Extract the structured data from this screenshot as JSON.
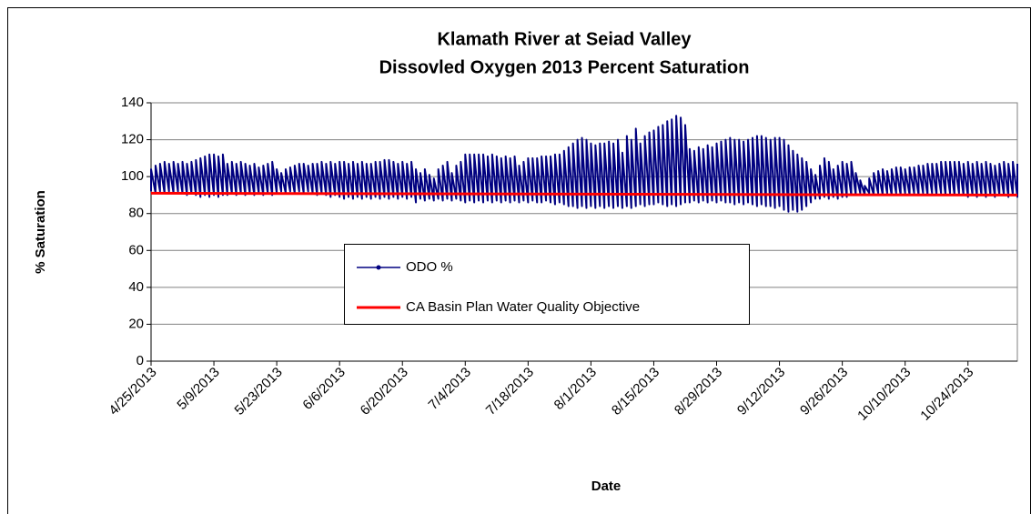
{
  "chart_data": {
    "type": "line",
    "title": "Klamath River at Seiad Valley",
    "subtitle": "Dissovled Oxygen 2013 Percent Saturation",
    "x_label": "Date",
    "y_label": "% Saturation",
    "ylim": [
      0,
      140
    ],
    "yticks": [
      0,
      20,
      40,
      60,
      80,
      100,
      120,
      140
    ],
    "grid": true,
    "xlim": [
      "4/25/2013",
      "11/4/2013"
    ],
    "xticks": [
      "4/25/2013",
      "5/9/2013",
      "5/23/2013",
      "6/6/2013",
      "6/20/2013",
      "7/4/2013",
      "7/18/2013",
      "8/1/2013",
      "8/15/2013",
      "8/29/2013",
      "9/12/2013",
      "9/26/2013",
      "10/10/2013",
      "10/24/2013"
    ],
    "legend": "center-left",
    "x": [
      "4/25/2013",
      "4/25/2013",
      "4/26/2013",
      "4/26/2013",
      "4/27/2013",
      "4/27/2013",
      "4/28/2013",
      "4/28/2013",
      "4/29/2013",
      "4/29/2013",
      "4/30/2013",
      "4/30/2013",
      "5/1/2013",
      "5/1/2013",
      "5/2/2013",
      "5/2/2013",
      "5/3/2013",
      "5/3/2013",
      "5/4/2013",
      "5/4/2013",
      "5/5/2013",
      "5/5/2013",
      "5/6/2013",
      "5/6/2013",
      "5/7/2013",
      "5/7/2013",
      "5/8/2013",
      "5/8/2013",
      "5/9/2013",
      "5/9/2013",
      "5/10/2013",
      "5/10/2013",
      "5/11/2013",
      "5/11/2013",
      "5/12/2013",
      "5/12/2013",
      "5/13/2013",
      "5/13/2013",
      "5/14/2013",
      "5/14/2013",
      "5/15/2013",
      "5/15/2013",
      "5/16/2013",
      "5/16/2013",
      "5/17/2013",
      "5/17/2013",
      "5/18/2013",
      "5/18/2013",
      "5/19/2013",
      "5/19/2013",
      "5/20/2013",
      "5/20/2013",
      "5/21/2013",
      "5/21/2013",
      "5/22/2013",
      "5/22/2013",
      "5/23/2013",
      "5/23/2013",
      "5/24/2013",
      "5/24/2013",
      "5/25/2013",
      "5/25/2013",
      "5/26/2013",
      "5/26/2013",
      "5/27/2013",
      "5/27/2013",
      "5/28/2013",
      "5/28/2013",
      "5/29/2013",
      "5/29/2013",
      "5/30/2013",
      "5/30/2013",
      "5/31/2013",
      "5/31/2013",
      "6/1/2013",
      "6/1/2013",
      "6/2/2013",
      "6/2/2013",
      "6/3/2013",
      "6/3/2013",
      "6/4/2013",
      "6/4/2013",
      "6/5/2013",
      "6/5/2013",
      "6/6/2013",
      "6/6/2013",
      "6/7/2013",
      "6/7/2013",
      "6/8/2013",
      "6/8/2013",
      "6/9/2013",
      "6/9/2013",
      "6/10/2013",
      "6/10/2013",
      "6/11/2013",
      "6/11/2013",
      "6/12/2013",
      "6/12/2013",
      "6/13/2013",
      "6/13/2013",
      "6/14/2013",
      "6/14/2013",
      "6/15/2013",
      "6/15/2013",
      "6/16/2013",
      "6/16/2013",
      "6/17/2013",
      "6/17/2013",
      "6/18/2013",
      "6/18/2013",
      "6/19/2013",
      "6/19/2013",
      "6/20/2013",
      "6/20/2013",
      "6/21/2013",
      "6/21/2013",
      "6/22/2013",
      "6/22/2013",
      "6/23/2013",
      "6/23/2013",
      "6/24/2013",
      "6/24/2013",
      "6/25/2013",
      "6/25/2013",
      "6/26/2013",
      "6/26/2013",
      "6/27/2013",
      "6/27/2013",
      "6/28/2013",
      "6/28/2013",
      "6/29/2013",
      "6/29/2013",
      "6/30/2013",
      "6/30/2013",
      "7/1/2013",
      "7/1/2013",
      "7/2/2013",
      "7/2/2013",
      "7/3/2013",
      "7/3/2013",
      "7/4/2013",
      "7/4/2013",
      "7/5/2013",
      "7/5/2013",
      "7/6/2013",
      "7/6/2013",
      "7/7/2013",
      "7/7/2013",
      "7/8/2013",
      "7/8/2013",
      "7/9/2013",
      "7/9/2013",
      "7/10/2013",
      "7/10/2013",
      "7/11/2013",
      "7/11/2013",
      "7/12/2013",
      "7/12/2013",
      "7/13/2013",
      "7/13/2013",
      "7/14/2013",
      "7/14/2013",
      "7/15/2013",
      "7/15/2013",
      "7/16/2013",
      "7/16/2013",
      "7/17/2013",
      "7/17/2013",
      "7/18/2013",
      "7/18/2013",
      "7/19/2013",
      "7/19/2013",
      "7/20/2013",
      "7/20/2013",
      "7/21/2013",
      "7/21/2013",
      "7/22/2013",
      "7/22/2013",
      "7/23/2013",
      "7/23/2013",
      "7/24/2013",
      "7/24/2013",
      "7/25/2013",
      "7/25/2013",
      "7/26/2013",
      "7/26/2013",
      "7/27/2013",
      "7/27/2013",
      "7/28/2013",
      "7/28/2013",
      "7/29/2013",
      "7/29/2013",
      "7/30/2013",
      "7/30/2013",
      "7/31/2013",
      "7/31/2013",
      "8/1/2013",
      "8/1/2013",
      "8/2/2013",
      "8/2/2013",
      "8/3/2013",
      "8/3/2013",
      "8/4/2013",
      "8/4/2013",
      "8/5/2013",
      "8/5/2013",
      "8/6/2013",
      "8/6/2013",
      "8/7/2013",
      "8/7/2013",
      "8/8/2013",
      "8/8/2013",
      "8/9/2013",
      "8/9/2013",
      "8/10/2013",
      "8/10/2013",
      "8/11/2013",
      "8/11/2013",
      "8/12/2013",
      "8/12/2013",
      "8/13/2013",
      "8/13/2013",
      "8/14/2013",
      "8/14/2013",
      "8/15/2013",
      "8/15/2013",
      "8/16/2013",
      "8/16/2013",
      "8/17/2013",
      "8/17/2013",
      "8/18/2013",
      "8/18/2013",
      "8/19/2013",
      "8/19/2013",
      "8/20/2013",
      "8/20/2013",
      "8/21/2013",
      "8/21/2013",
      "8/22/2013",
      "8/22/2013",
      "8/23/2013",
      "8/23/2013",
      "8/24/2013",
      "8/24/2013",
      "8/25/2013",
      "8/25/2013",
      "8/26/2013",
      "8/26/2013",
      "8/27/2013",
      "8/27/2013",
      "8/28/2013",
      "8/28/2013",
      "8/29/2013",
      "8/29/2013",
      "8/30/2013",
      "8/30/2013",
      "8/31/2013",
      "8/31/2013",
      "9/1/2013",
      "9/1/2013",
      "9/2/2013",
      "9/2/2013",
      "9/3/2013",
      "9/3/2013",
      "9/4/2013",
      "9/4/2013",
      "9/5/2013",
      "9/5/2013",
      "9/6/2013",
      "9/6/2013",
      "9/7/2013",
      "9/7/2013",
      "9/8/2013",
      "9/8/2013",
      "9/9/2013",
      "9/9/2013",
      "9/10/2013",
      "9/10/2013",
      "9/11/2013",
      "9/11/2013",
      "9/12/2013",
      "9/12/2013",
      "9/13/2013",
      "9/13/2013",
      "9/14/2013",
      "9/14/2013",
      "9/15/2013",
      "9/15/2013",
      "9/16/2013",
      "9/16/2013",
      "9/17/2013",
      "9/17/2013",
      "9/18/2013",
      "9/18/2013",
      "9/19/2013",
      "9/19/2013",
      "9/20/2013",
      "9/20/2013",
      "9/21/2013",
      "9/21/2013",
      "9/22/2013",
      "9/22/2013",
      "9/23/2013",
      "9/23/2013",
      "9/24/2013",
      "9/24/2013",
      "9/25/2013",
      "9/25/2013",
      "9/26/2013",
      "9/26/2013",
      "9/27/2013",
      "9/27/2013",
      "9/28/2013",
      "9/28/2013",
      "9/29/2013",
      "9/29/2013",
      "9/30/2013",
      "9/30/2013",
      "10/1/2013",
      "10/1/2013",
      "10/2/2013",
      "10/2/2013",
      "10/3/2013",
      "10/3/2013",
      "10/4/2013",
      "10/4/2013",
      "10/5/2013",
      "10/5/2013",
      "10/6/2013",
      "10/6/2013",
      "10/7/2013",
      "10/7/2013",
      "10/8/2013",
      "10/8/2013",
      "10/9/2013",
      "10/9/2013",
      "10/10/2013",
      "10/10/2013",
      "10/11/2013",
      "10/11/2013",
      "10/12/2013",
      "10/12/2013",
      "10/13/2013",
      "10/13/2013",
      "10/14/2013",
      "10/14/2013",
      "10/15/2013",
      "10/15/2013",
      "10/16/2013",
      "10/16/2013",
      "10/17/2013",
      "10/17/2013",
      "10/18/2013",
      "10/18/2013",
      "10/19/2013",
      "10/19/2013",
      "10/20/2013",
      "10/20/2013",
      "10/21/2013",
      "10/21/2013",
      "10/22/2013",
      "10/22/2013",
      "10/23/2013",
      "10/23/2013",
      "10/24/2013",
      "10/24/2013",
      "10/25/2013",
      "10/25/2013",
      "10/26/2013",
      "10/26/2013",
      "10/27/2013",
      "10/27/2013",
      "10/28/2013",
      "10/28/2013",
      "10/29/2013",
      "10/29/2013",
      "10/30/2013",
      "10/30/2013",
      "10/31/2013",
      "10/31/2013",
      "11/1/2013",
      "11/1/2013",
      "11/2/2013",
      "11/2/2013",
      "11/3/2013",
      "11/3/2013",
      "11/4/2013",
      "11/4/2013"
    ],
    "series": [
      {
        "name": "ODO %",
        "color": "#000080",
        "values": [
          92,
          104,
          91,
          106,
          92,
          107,
          91,
          108,
          92,
          107,
          91,
          108,
          92,
          107,
          91,
          108,
          90,
          107,
          91,
          108,
          90,
          109,
          89,
          110,
          90,
          111,
          89,
          112,
          90,
          112,
          89,
          111,
          90,
          112,
          90,
          107,
          91,
          108,
          90,
          107,
          91,
          108,
          90,
          107,
          91,
          106,
          90,
          107,
          91,
          105,
          90,
          106,
          91,
          107,
          90,
          108,
          91,
          104,
          92,
          102,
          91,
          104,
          92,
          105,
          91,
          106,
          92,
          107,
          91,
          107,
          92,
          106,
          91,
          107,
          90,
          107,
          91,
          108,
          90,
          107,
          89,
          108,
          90,
          107,
          89,
          108,
          88,
          108,
          89,
          107,
          88,
          108,
          89,
          107,
          88,
          108,
          89,
          107,
          88,
          107,
          89,
          108,
          88,
          108,
          89,
          109,
          88,
          109,
          89,
          108,
          88,
          107,
          89,
          108,
          88,
          107,
          89,
          108,
          86,
          104,
          88,
          102,
          87,
          104,
          88,
          101,
          87,
          99,
          88,
          104,
          87,
          106,
          88,
          108,
          87,
          102,
          88,
          106,
          87,
          108,
          86,
          112,
          87,
          112,
          86,
          112,
          87,
          112,
          86,
          112,
          87,
          111,
          86,
          112,
          87,
          111,
          86,
          110,
          87,
          111,
          86,
          110,
          87,
          111,
          86,
          106,
          87,
          108,
          86,
          110,
          87,
          110,
          86,
          110,
          86,
          111,
          87,
          111,
          86,
          111,
          85,
          112,
          86,
          112,
          85,
          114,
          84,
          116,
          84,
          118,
          83,
          120,
          84,
          121,
          83,
          120,
          84,
          118,
          83,
          117,
          84,
          118,
          83,
          118,
          84,
          119,
          83,
          118,
          84,
          120,
          83,
          113,
          84,
          122,
          83,
          120,
          84,
          126,
          85,
          118,
          84,
          122,
          85,
          124,
          85,
          125,
          86,
          127,
          85,
          128,
          84,
          130,
          85,
          131,
          84,
          133,
          85,
          132,
          86,
          128,
          86,
          115,
          87,
          114,
          86,
          116,
          87,
          115,
          86,
          117,
          87,
          116,
          86,
          118,
          87,
          119,
          86,
          120,
          86,
          121,
          85,
          120,
          86,
          120,
          85,
          119,
          86,
          120,
          85,
          121,
          84,
          122,
          85,
          122,
          84,
          121,
          84,
          120,
          83,
          121,
          84,
          121,
          82,
          120,
          81,
          117,
          82,
          114,
          81,
          112,
          82,
          110,
          84,
          108,
          86,
          104,
          88,
          101,
          88,
          106,
          89,
          110,
          88,
          108,
          89,
          104,
          88,
          106,
          89,
          108,
          89,
          107,
          90,
          108,
          90,
          102,
          91,
          98,
          90,
          95,
          91,
          99,
          90,
          102,
          91,
          103,
          90,
          104,
          91,
          103,
          90,
          104,
          91,
          105,
          90,
          105,
          91,
          104,
          90,
          105,
          91,
          105,
          90,
          106,
          91,
          106,
          90,
          107,
          91,
          107,
          90,
          107,
          91,
          108,
          90,
          108,
          91,
          108,
          90,
          108,
          91,
          108,
          90,
          107,
          89,
          108,
          90,
          107,
          89,
          108,
          90,
          107,
          89,
          108,
          90,
          107,
          89,
          106,
          90,
          107,
          90,
          108,
          89,
          107,
          90,
          108,
          89,
          107
        ]
      },
      {
        "name": "CA Basin Plan Water Quality Objective",
        "color": "#ff0000",
        "x": [
          "4/25/2013",
          "11/4/2013"
        ],
        "values": [
          91,
          90
        ]
      }
    ]
  }
}
